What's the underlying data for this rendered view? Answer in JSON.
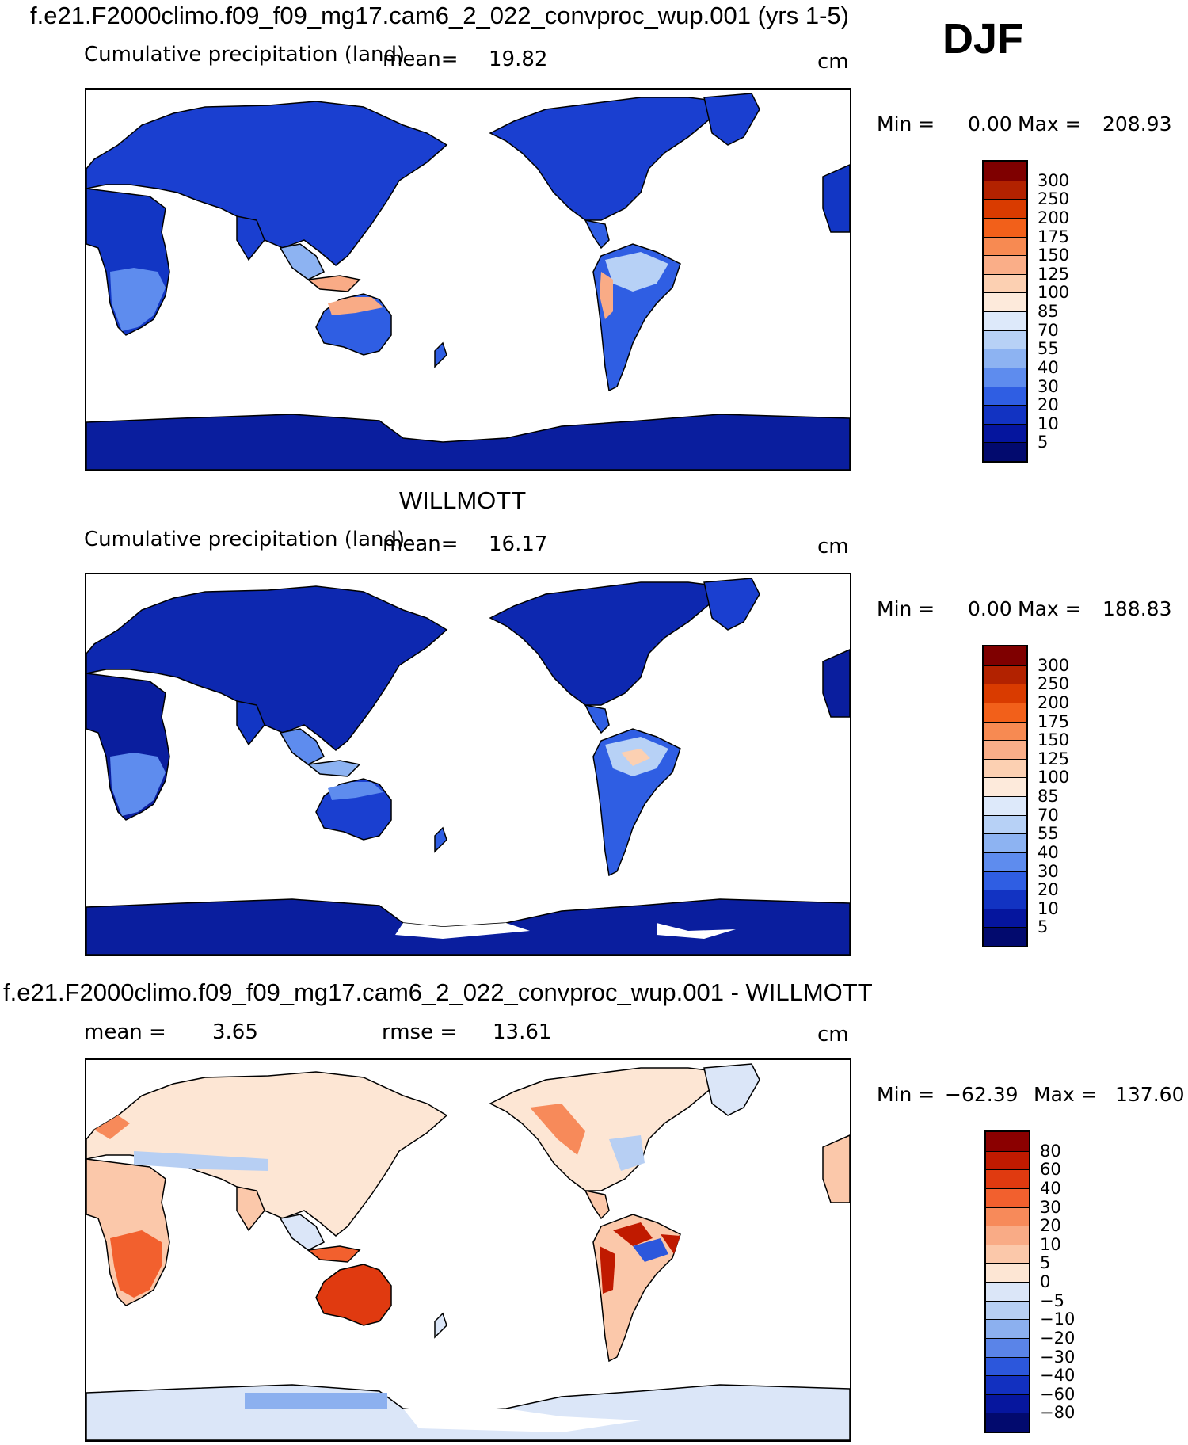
{
  "chart_data": [
    {
      "type": "heatmap",
      "title": "f.e21.F2000climo.f09_f09_mg17.cam6_2_022_convproc_wup.001 (yrs 1-5)",
      "season": "DJF",
      "variable_label": "Cumulative precipitation (land)",
      "mean_label": "mean=",
      "mean_value": "19.82",
      "units": "cm",
      "min_label": "Min =",
      "min_value": "0.00",
      "max_label": "Max =",
      "max_value": "208.93",
      "colorbar_levels": [
        "300",
        "250",
        "200",
        "175",
        "150",
        "125",
        "100",
        "85",
        "70",
        "55",
        "40",
        "30",
        "20",
        "10",
        "5"
      ],
      "colorbar_colors": [
        "#7f0000",
        "#b22200",
        "#d93b00",
        "#f2601a",
        "#f78a52",
        "#faae88",
        "#fcd0b2",
        "#fdeadb",
        "#dde9fa",
        "#b7d1f6",
        "#8db3f2",
        "#5e8cee",
        "#2f5ee3",
        "#1233c2",
        "#05159e",
        "#020a6e"
      ]
    },
    {
      "type": "heatmap",
      "title": "WILLMOTT",
      "variable_label": "Cumulative precipitation (land)",
      "mean_label": "mean=",
      "mean_value": "16.17",
      "units": "cm",
      "min_label": "Min =",
      "min_value": "0.00",
      "max_label": "Max =",
      "max_value": "188.83",
      "colorbar_levels": [
        "300",
        "250",
        "200",
        "175",
        "150",
        "125",
        "100",
        "85",
        "70",
        "55",
        "40",
        "30",
        "20",
        "10",
        "5"
      ],
      "colorbar_colors": [
        "#7f0000",
        "#b22200",
        "#d93b00",
        "#f2601a",
        "#f78a52",
        "#faae88",
        "#fcd0b2",
        "#fdeadb",
        "#dde9fa",
        "#b7d1f6",
        "#8db3f2",
        "#5e8cee",
        "#2f5ee3",
        "#1233c2",
        "#05159e",
        "#020a6e"
      ]
    },
    {
      "type": "heatmap",
      "title": "f.e21.F2000climo.f09_f09_mg17.cam6_2_022_convproc_wup.001 - WILLMOTT",
      "mean_label": "mean =",
      "mean_value": "3.65",
      "rmse_label": "rmse =",
      "rmse_value": "13.61",
      "units": "cm",
      "min_label": "Min =",
      "min_value": "−62.39",
      "max_label": "Max =",
      "max_value": "137.60",
      "colorbar_levels": [
        "80",
        "60",
        "40",
        "30",
        "20",
        "10",
        "5",
        "0",
        "−5",
        "−10",
        "−20",
        "−30",
        "−40",
        "−60",
        "−80"
      ],
      "colorbar_colors": [
        "#8b0000",
        "#c01a00",
        "#e03a10",
        "#f2602e",
        "#f78a5a",
        "#f9ab86",
        "#fbc8aa",
        "#fde6d4",
        "#dbe6f8",
        "#b7cff3",
        "#8cb0ef",
        "#5a84e8",
        "#2c57dc",
        "#1230c0",
        "#06169e",
        "#020a6e"
      ]
    }
  ]
}
